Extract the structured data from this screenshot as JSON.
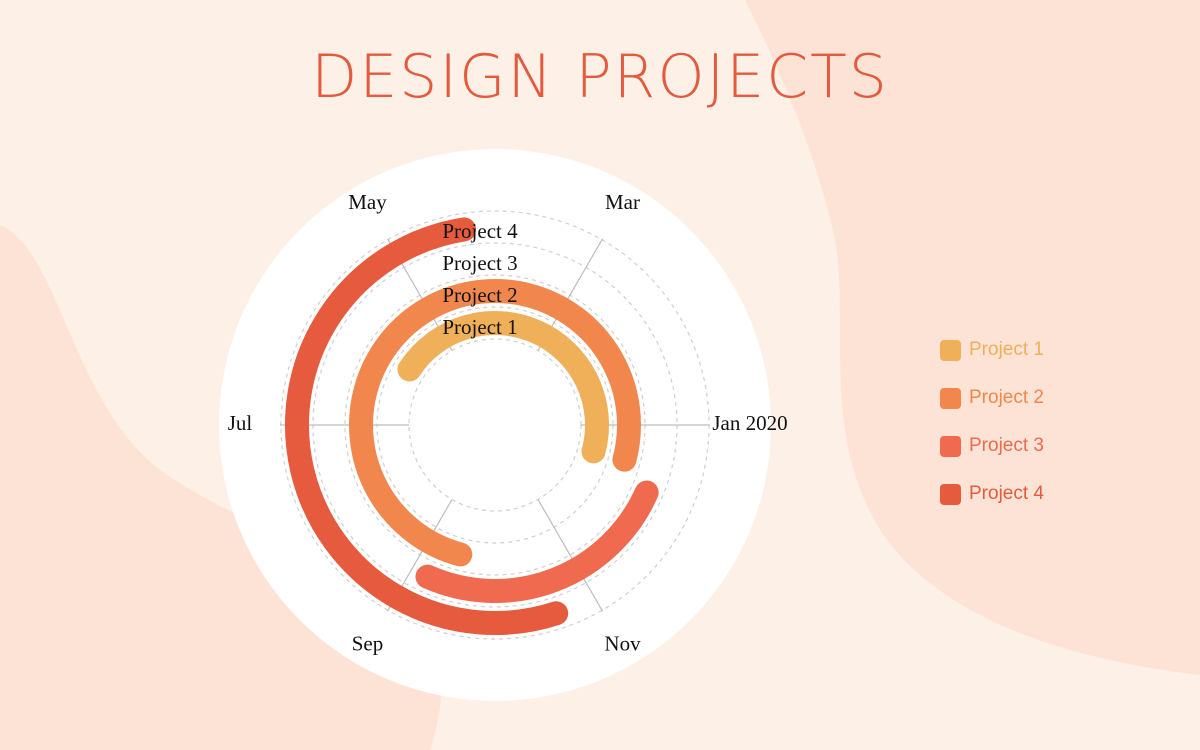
{
  "page": {
    "title": "DESIGN PROJECTS"
  },
  "legend": {
    "items": [
      {
        "label": "Project 1",
        "color": "#f0b05a"
      },
      {
        "label": "Project 2",
        "color": "#f1874c"
      },
      {
        "label": "Project 3",
        "color": "#ef6a4e"
      },
      {
        "label": "Project 4",
        "color": "#e65a3d"
      }
    ]
  },
  "chart_data": {
    "type": "radial_gantt",
    "title": "DESIGN PROJECTS",
    "angular_axis": {
      "direction": "counterclockwise",
      "start_angle_deg": 0,
      "degrees_per_month": 30,
      "tick_labels": [
        "Jan 2020",
        "Mar",
        "May",
        "Jul",
        "Sep",
        "Nov"
      ]
    },
    "radial_labels": [
      "Project 1",
      "Project 2",
      "Project 3",
      "Project 4"
    ],
    "series": [
      {
        "name": "Project 1",
        "color": "#f0b05a",
        "start_month_index": -0.5,
        "end_month_index": 4.9
      },
      {
        "name": "Project 2",
        "color": "#f1874c",
        "start_month_index": -0.5,
        "end_month_index": 8.5
      },
      {
        "name": "Project 3",
        "color": "#ef6a4e",
        "start_month_index": 8.2,
        "end_month_index": 11.2
      },
      {
        "name": "Project 4",
        "color": "#e65a3d",
        "start_month_index": 3.3,
        "end_month_index": 9.6
      }
    ],
    "grid": true,
    "legend_position": "right"
  }
}
